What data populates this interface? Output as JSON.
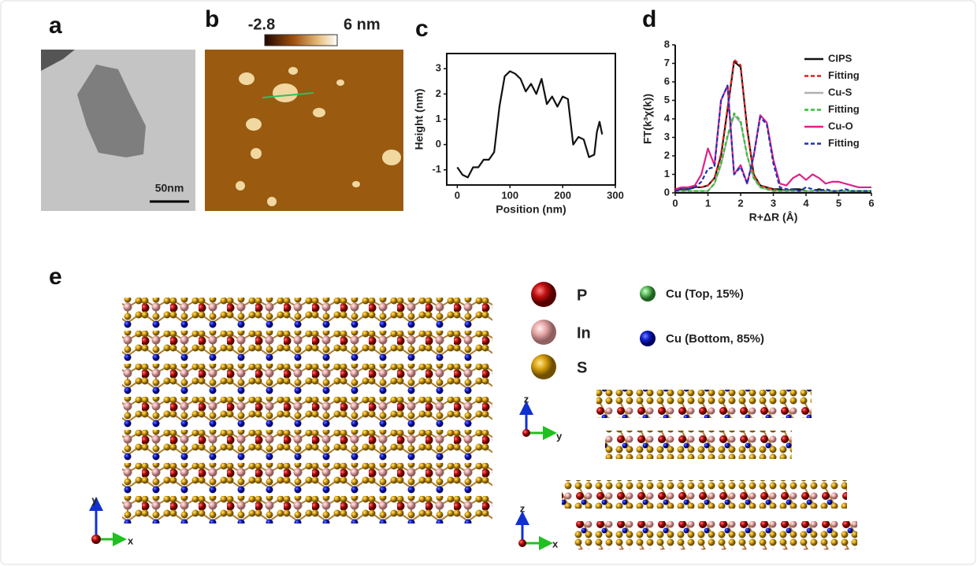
{
  "panels": {
    "a": {
      "label": "a",
      "scale_bar": "50nm"
    },
    "b": {
      "label": "b",
      "colorbar_min": "-2.8",
      "colorbar_max": "6 nm"
    },
    "c": {
      "label": "c"
    },
    "d": {
      "label": "d"
    },
    "e": {
      "label": "e",
      "legend": [
        "P",
        "In",
        "S",
        "Cu (Top, 15%)",
        "Cu (Bottom, 85%)"
      ],
      "top_axes": [
        "y",
        "x"
      ],
      "side_axes_1": [
        "z",
        "y"
      ],
      "side_axes_2": [
        "z",
        "x"
      ]
    }
  },
  "chart_data": [
    {
      "type": "line",
      "x_label": "Position (nm)",
      "y_label": "Height (nm)",
      "x": [
        0,
        10,
        20,
        30,
        40,
        50,
        60,
        70,
        80,
        90,
        100,
        110,
        120,
        130,
        140,
        150,
        160,
        170,
        180,
        190,
        200,
        210,
        220,
        230,
        240,
        250,
        260,
        265,
        270,
        275
      ],
      "values": [
        -0.9,
        -1.2,
        -1.3,
        -0.9,
        -0.9,
        -0.6,
        -0.6,
        -0.3,
        1.5,
        2.7,
        2.9,
        2.8,
        2.6,
        2.1,
        2.4,
        2.0,
        2.6,
        1.6,
        1.9,
        1.5,
        1.9,
        1.8,
        0.0,
        0.3,
        0.2,
        -0.5,
        -0.4,
        0.5,
        0.9,
        0.4
      ],
      "color": "#111111",
      "xlim": [
        -20,
        300
      ],
      "xticks": [
        0,
        100,
        200,
        300
      ],
      "ylim": [
        -1.6,
        3.6
      ],
      "yticks": [
        -1,
        0,
        1,
        2,
        3
      ]
    },
    {
      "type": "line",
      "x_label": "R+ΔR (Å)",
      "y_label": "FT(k³χ(k))",
      "x": [
        0,
        0.2,
        0.4,
        0.6,
        0.8,
        1.0,
        1.2,
        1.4,
        1.6,
        1.8,
        2.0,
        2.2,
        2.4,
        2.6,
        2.8,
        3.0,
        3.2,
        3.4,
        3.6,
        3.8,
        4.0,
        4.2,
        4.4,
        4.6,
        4.8,
        5.0,
        5.2,
        5.4,
        5.6,
        5.8,
        6.0
      ],
      "series": [
        {
          "name": "CIPS",
          "color": "#111111",
          "dash": false,
          "values": [
            0.2,
            0.2,
            0.2,
            0.3,
            0.3,
            0.4,
            0.8,
            2.0,
            4.5,
            7.1,
            6.8,
            3.5,
            1.0,
            0.4,
            0.3,
            0.2,
            0.2,
            0.1,
            0.2,
            0.2,
            0.1,
            0.1,
            0.2,
            0.1,
            0.1,
            0.1,
            0.1,
            0.1,
            0.1,
            0.1,
            0.1
          ]
        },
        {
          "name": "Fitting",
          "color": "#e02020",
          "dash": true,
          "values": [
            0.2,
            0.2,
            0.2,
            0.3,
            0.3,
            0.4,
            0.8,
            2.1,
            4.6,
            7.2,
            6.9,
            3.4,
            1.0,
            0.4,
            0.3,
            0.2,
            0.1,
            0.1,
            0.1,
            0.1,
            0.1,
            0.1,
            0.1,
            0.1,
            0.1,
            0.1,
            0.1,
            0.1,
            0.1,
            0.1,
            0.1
          ]
        },
        {
          "name": "Cu-S",
          "color": "#b0b0b0",
          "dash": false,
          "values": [
            0.1,
            0.1,
            0.1,
            0.1,
            0.1,
            0.1,
            0.5,
            1.5,
            3.0,
            4.2,
            3.8,
            2.0,
            0.8,
            0.3,
            0.2,
            0.1,
            0.1,
            0.1,
            0.1,
            0.1,
            0.1,
            0.1,
            0.1,
            0.1,
            0.1,
            0.1,
            0.1,
            0.1,
            0.1,
            0.1,
            0.1
          ]
        },
        {
          "name": "Fitting",
          "color": "#30c030",
          "dash": true,
          "values": [
            0.1,
            0.1,
            0.1,
            0.1,
            0.1,
            0.1,
            0.5,
            1.6,
            3.1,
            4.3,
            3.9,
            2.0,
            0.8,
            0.3,
            0.2,
            0.1,
            0.1,
            0.1,
            0.1,
            0.1,
            0.1,
            0.1,
            0.1,
            0.1,
            0.1,
            0.1,
            0.1,
            0.1,
            0.1,
            0.1,
            0.1
          ]
        },
        {
          "name": "Cu-O",
          "color": "#e0208a",
          "dash": false,
          "values": [
            0.2,
            0.3,
            0.3,
            0.4,
            1.0,
            2.4,
            1.5,
            5.0,
            5.8,
            1.0,
            1.5,
            0.5,
            2.0,
            4.2,
            3.8,
            1.8,
            0.5,
            0.4,
            0.8,
            1.0,
            0.7,
            1.0,
            0.8,
            0.5,
            0.6,
            0.6,
            0.5,
            0.4,
            0.3,
            0.3,
            0.3
          ]
        },
        {
          "name": "Fitting",
          "color": "#2030b0",
          "dash": true,
          "values": [
            0.1,
            0.2,
            0.2,
            0.3,
            0.6,
            1.3,
            1.4,
            5.0,
            5.8,
            1.0,
            1.4,
            0.5,
            2.0,
            4.1,
            3.7,
            1.6,
            0.3,
            0.2,
            0.2,
            0.1,
            0.3,
            0.2,
            0.1,
            0.2,
            0.1,
            0.1,
            0.2,
            0.1,
            0.1,
            0.1,
            0.1
          ]
        }
      ],
      "xlim": [
        0,
        6
      ],
      "xticks": [
        0,
        1,
        2,
        3,
        4,
        5,
        6
      ],
      "ylim": [
        0,
        8
      ],
      "yticks": [
        0,
        1,
        2,
        3,
        4,
        5,
        6,
        7,
        8
      ],
      "legend": "upper right"
    }
  ]
}
